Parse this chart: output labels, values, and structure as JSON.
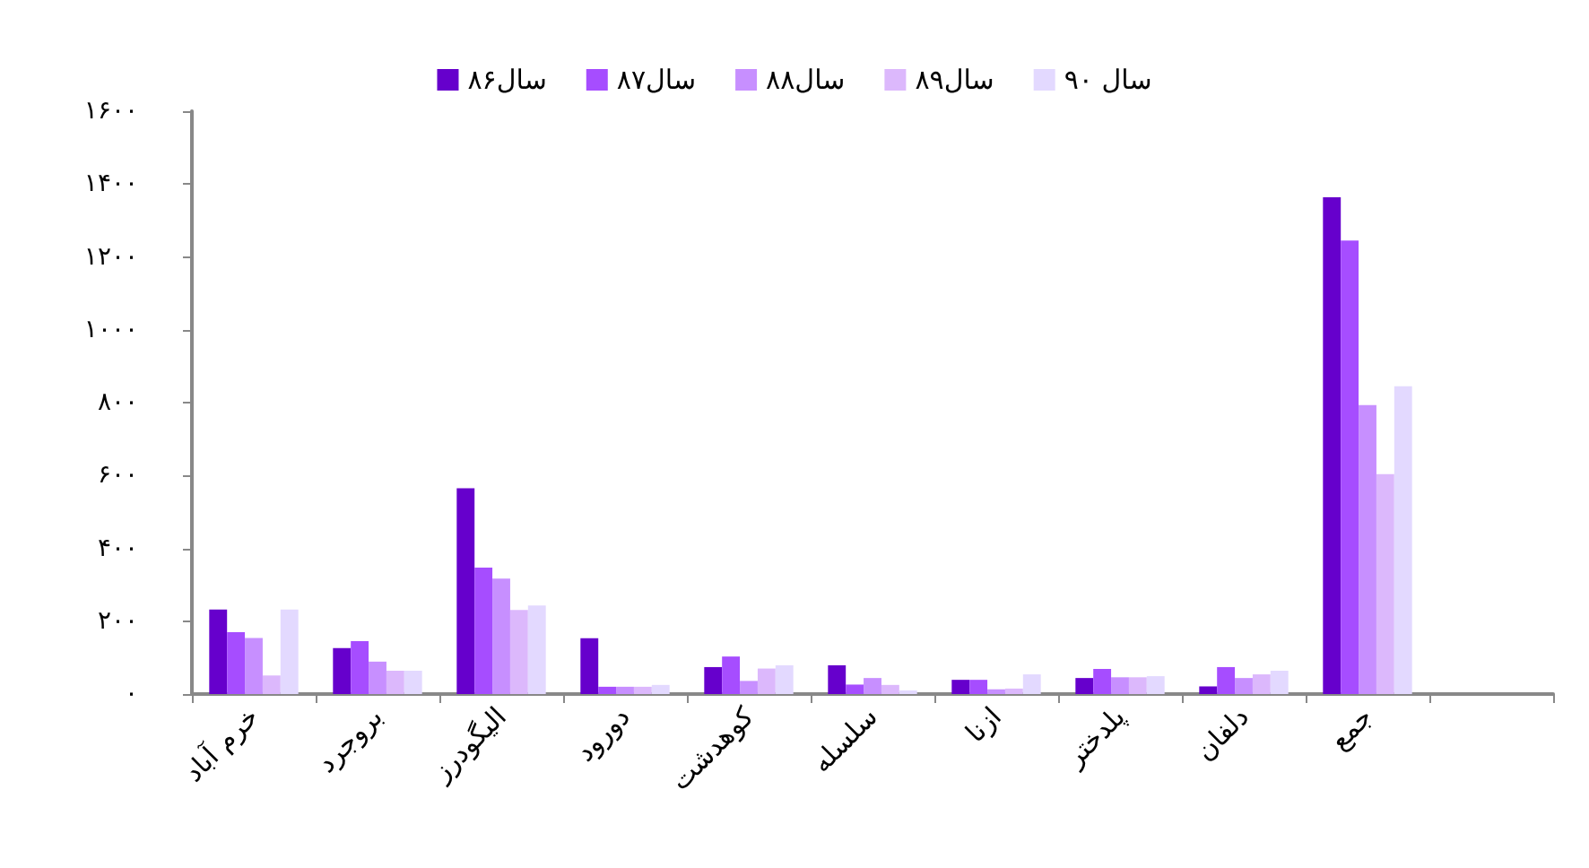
{
  "chart_data": {
    "type": "bar",
    "categories": [
      "خرم آباد",
      "بروجرد",
      "الیگودرز",
      "دورود",
      "کوهدشت",
      "سلسله",
      "ازنا",
      "پلدختر",
      "دلفان",
      "جمع",
      null
    ],
    "series": [
      {
        "name": "سال۸۶",
        "color": "#6600cc",
        "values": [
          232,
          126,
          565,
          153,
          74,
          79,
          39,
          44,
          21,
          1364,
          null
        ]
      },
      {
        "name": "سال۸۷",
        "color": "#a64dff",
        "values": [
          170,
          145,
          347,
          20,
          103,
          26,
          39,
          69,
          74,
          1245,
          null
        ]
      },
      {
        "name": "سال۸۸",
        "color": "#c78fff",
        "values": [
          154,
          89,
          317,
          20,
          36,
          44,
          13,
          46,
          44,
          793,
          null
        ]
      },
      {
        "name": "سال۸۹",
        "color": "#dcb8fc",
        "values": [
          51,
          64,
          231,
          20,
          70,
          25,
          15,
          46,
          54,
          604,
          null
        ]
      },
      {
        "name": "سال ۹۰",
        "color": "#e3d9ff",
        "values": [
          232,
          64,
          243,
          25,
          79,
          10,
          54,
          49,
          64,
          845,
          null
        ]
      }
    ],
    "ylim": [
      0,
      1600
    ],
    "yticks": [
      {
        "value": 0,
        "label": "۰"
      },
      {
        "value": 200,
        "label": "۲۰۰"
      },
      {
        "value": 400,
        "label": "۴۰۰"
      },
      {
        "value": 600,
        "label": "۶۰۰"
      },
      {
        "value": 800,
        "label": "۸۰۰"
      },
      {
        "value": 1000,
        "label": "۱۰۰۰"
      },
      {
        "value": 1200,
        "label": "۱۲۰۰"
      },
      {
        "value": 1400,
        "label": "۱۴۰۰"
      },
      {
        "value": 1600,
        "label": "۱۶۰۰"
      }
    ],
    "grid": false,
    "legend": "top"
  }
}
